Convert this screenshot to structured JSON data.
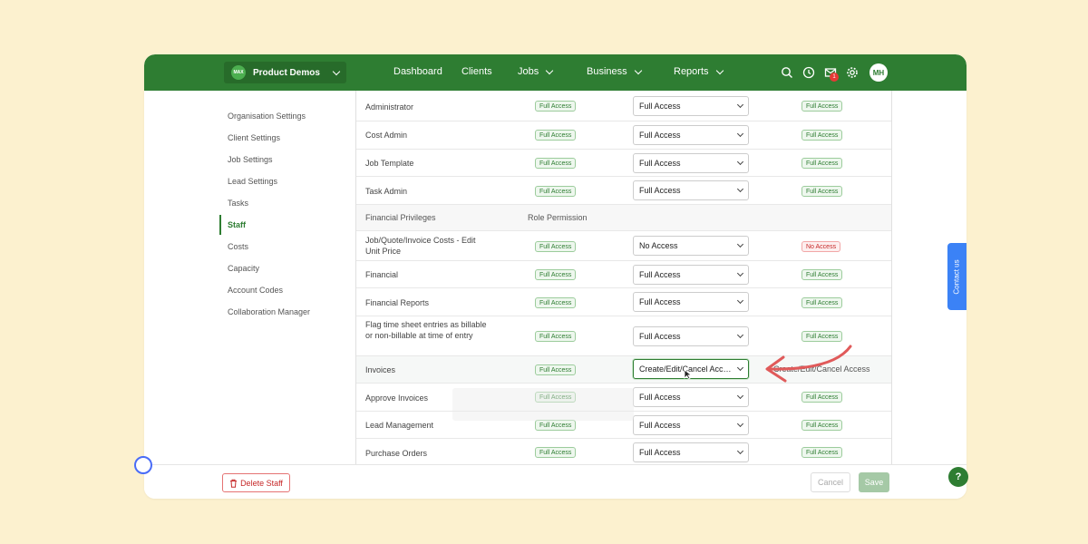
{
  "colors": {
    "brand": "#2e7d32",
    "background": "#fcf1cf",
    "pill_green": "#2e7d32",
    "pill_red": "#c62828",
    "arrow": "#e05a5a",
    "contact_tab": "#3b82f6"
  },
  "header": {
    "org_logo_text": "MAX",
    "org_name": "Product Demos",
    "nav": [
      "Dashboard",
      "Clients",
      "Jobs",
      "Business",
      "Reports"
    ],
    "notification_count": "1",
    "avatar_initials": "MH"
  },
  "sidebar": {
    "items": [
      "Organisation Settings",
      "Client Settings",
      "Job Settings",
      "Lead Settings",
      "Tasks",
      "Staff",
      "Costs",
      "Capacity",
      "Account Codes",
      "Collaboration Manager"
    ],
    "active": "Staff"
  },
  "table": {
    "rows": [
      {
        "label": "Administrator",
        "role": "Full Access",
        "select": "Full Access",
        "effective": "Full Access"
      },
      {
        "label": "Cost Admin",
        "role": "Full Access",
        "select": "Full Access",
        "effective": "Full Access"
      },
      {
        "label": "Job Template",
        "role": "Full Access",
        "select": "Full Access",
        "effective": "Full Access"
      },
      {
        "label": "Task Admin",
        "role": "Full Access",
        "select": "Full Access",
        "effective": "Full Access"
      },
      {
        "section": true,
        "label": "Financial Privileges",
        "role_header": "Role Permission"
      },
      {
        "label": "Job/Quote/Invoice Costs - Edit Unit Price",
        "role": "Full Access",
        "select": "No Access",
        "effective": "No Access"
      },
      {
        "label": "Financial",
        "role": "Full Access",
        "select": "Full Access",
        "effective": "Full Access"
      },
      {
        "label": "Financial Reports",
        "role": "Full Access",
        "select": "Full Access",
        "effective": "Full Access"
      },
      {
        "label": "Flag time sheet entries as billable or non-billable at time of entry",
        "role": "Full Access",
        "select": "Full Access",
        "effective": "Full Access"
      },
      {
        "label": "Invoices",
        "role": "Full Access",
        "select": "Create/Edit/Cancel Access",
        "effective": "Create/Edit/Cancel Access"
      },
      {
        "label": "Approve Invoices",
        "role": "Full Access",
        "select": "Full Access",
        "effective": "Full Access"
      },
      {
        "label": "Lead Management",
        "role": "Full Access",
        "select": "Full Access",
        "effective": "Full Access"
      },
      {
        "label": "Purchase Orders",
        "role": "Full Access",
        "select": "Full Access",
        "effective": "Full Access"
      }
    ]
  },
  "footer": {
    "delete_label": "Delete Staff",
    "cancel_label": "Cancel",
    "save_label": "Save"
  },
  "help_label": "?",
  "contact_label": "Contact us"
}
